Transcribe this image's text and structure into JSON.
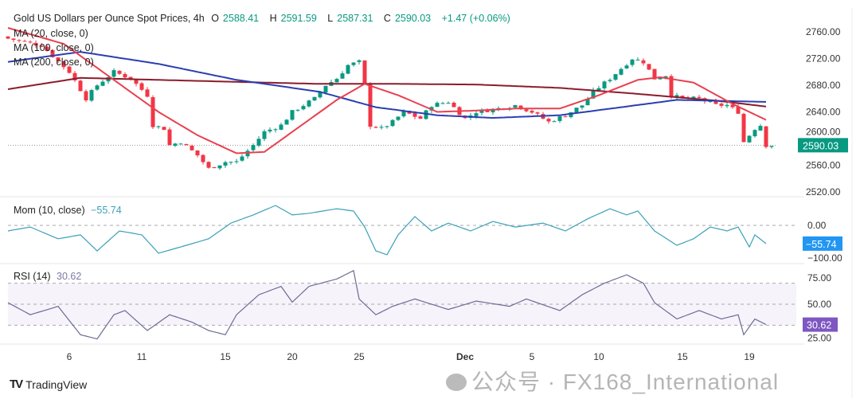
{
  "header": {
    "title": "Gold US Dollars per Ounce Spot Prices, 4h",
    "open_label": "O",
    "open": "2588.41",
    "high_label": "H",
    "high": "2591.59",
    "low_label": "L",
    "low": "2587.31",
    "close_label": "C",
    "close": "2590.03",
    "change": "+1.47 (+0.06%)"
  },
  "legend": {
    "ma20": "MA (20, close, 0)",
    "ma100": "MA (100, close, 0)",
    "ma200": "MA (200, close, 0)"
  },
  "mom_panel": {
    "title": "Mom (10, close)",
    "value": "−55.74"
  },
  "rsi_panel": {
    "title": "RSI (14)",
    "value": "30.62"
  },
  "brand": "TradingView",
  "watermark": "公众号 · FX168_International",
  "colors": {
    "up": "#089981",
    "down": "#f23645",
    "ma20": "#e8404f",
    "ma100": "#2b3fb0",
    "ma200": "#8c1b2b",
    "mom": "#3aa0b8",
    "rsi": "#6f6a96",
    "mom_badge": "#2196f3",
    "rsi_badge": "#7e57c2"
  },
  "chart_data": {
    "type": "candlestick",
    "title": "Gold US Dollars per Ounce Spot Prices, 4h",
    "x_ticks": [
      {
        "bar": 11,
        "label": "6"
      },
      {
        "bar": 24,
        "label": "11"
      },
      {
        "bar": 39,
        "label": "15"
      },
      {
        "bar": 51,
        "label": "20"
      },
      {
        "bar": 63,
        "label": "25"
      },
      {
        "bar": 82,
        "label": "Dec"
      },
      {
        "bar": 94,
        "label": "5"
      },
      {
        "bar": 106,
        "label": "10"
      },
      {
        "bar": 121,
        "label": "15"
      },
      {
        "bar": 133,
        "label": "19"
      }
    ],
    "bars": 138,
    "price": {
      "ylim": [
        2520,
        2760
      ],
      "y_ticks": [
        "2760.00",
        "2720.00",
        "2680.00",
        "2640.00",
        "2600.00",
        "2560.00",
        "2520.00"
      ],
      "last": "2590.03",
      "close_keypoints": [
        [
          0,
          2750
        ],
        [
          6,
          2740
        ],
        [
          11,
          2700
        ],
        [
          14,
          2660
        ],
        [
          16,
          2680
        ],
        [
          19,
          2700
        ],
        [
          22,
          2690
        ],
        [
          25,
          2665
        ],
        [
          26,
          2620
        ],
        [
          28,
          2615
        ],
        [
          29,
          2590
        ],
        [
          31,
          2595
        ],
        [
          34,
          2575
        ],
        [
          36,
          2555
        ],
        [
          39,
          2565
        ],
        [
          41,
          2565
        ],
        [
          44,
          2590
        ],
        [
          46,
          2610
        ],
        [
          49,
          2620
        ],
        [
          51,
          2640
        ],
        [
          55,
          2660
        ],
        [
          57,
          2680
        ],
        [
          59,
          2690
        ],
        [
          61,
          2710
        ],
        [
          63,
          2715
        ],
        [
          64,
          2680
        ],
        [
          65,
          2620
        ],
        [
          67,
          2615
        ],
        [
          69,
          2625
        ],
        [
          71,
          2640
        ],
        [
          74,
          2630
        ],
        [
          76,
          2650
        ],
        [
          79,
          2655
        ],
        [
          82,
          2630
        ],
        [
          84,
          2640
        ],
        [
          88,
          2645
        ],
        [
          91,
          2650
        ],
        [
          94,
          2640
        ],
        [
          97,
          2625
        ],
        [
          100,
          2635
        ],
        [
          103,
          2650
        ],
        [
          105,
          2670
        ],
        [
          108,
          2690
        ],
        [
          110,
          2705
        ],
        [
          112,
          2720
        ],
        [
          114,
          2715
        ],
        [
          116,
          2690
        ],
        [
          118,
          2695
        ],
        [
          119,
          2665
        ],
        [
          121,
          2660
        ],
        [
          124,
          2660
        ],
        [
          127,
          2650
        ],
        [
          129,
          2650
        ],
        [
          131,
          2640
        ],
        [
          132,
          2595
        ],
        [
          134,
          2615
        ],
        [
          135,
          2620
        ],
        [
          136,
          2590
        ],
        [
          137,
          2590
        ]
      ],
      "ma20": [
        [
          0,
          2766
        ],
        [
          10,
          2742
        ],
        [
          20,
          2682
        ],
        [
          27,
          2640
        ],
        [
          34,
          2605
        ],
        [
          41,
          2578
        ],
        [
          46,
          2580
        ],
        [
          51,
          2610
        ],
        [
          59,
          2658
        ],
        [
          64,
          2682
        ],
        [
          70,
          2665
        ],
        [
          77,
          2640
        ],
        [
          84,
          2642
        ],
        [
          91,
          2645
        ],
        [
          99,
          2645
        ],
        [
          106,
          2665
        ],
        [
          113,
          2688
        ],
        [
          117,
          2692
        ],
        [
          123,
          2684
        ],
        [
          130,
          2652
        ],
        [
          136,
          2628
        ]
      ],
      "ma100": [
        [
          0,
          2715
        ],
        [
          13,
          2730
        ],
        [
          27,
          2712
        ],
        [
          41,
          2688
        ],
        [
          56,
          2670
        ],
        [
          66,
          2647
        ],
        [
          77,
          2635
        ],
        [
          87,
          2631
        ],
        [
          99,
          2635
        ],
        [
          110,
          2647
        ],
        [
          120,
          2658
        ],
        [
          136,
          2655
        ]
      ],
      "ma200": [
        [
          0,
          2674
        ],
        [
          13,
          2691
        ],
        [
          27,
          2688
        ],
        [
          41,
          2685
        ],
        [
          56,
          2682
        ],
        [
          70,
          2682
        ],
        [
          84,
          2681
        ],
        [
          99,
          2676
        ],
        [
          113,
          2667
        ],
        [
          127,
          2657
        ],
        [
          136,
          2648
        ]
      ]
    },
    "momentum": {
      "ylim": [
        -120,
        80
      ],
      "y_ticks": [
        "0.00",
        "−100.00"
      ],
      "last": -55.74,
      "keypoints": [
        [
          0,
          -17
        ],
        [
          4,
          -5
        ],
        [
          9,
          -41
        ],
        [
          13,
          -29
        ],
        [
          16,
          -78
        ],
        [
          20,
          -17
        ],
        [
          24,
          -29
        ],
        [
          27,
          -85
        ],
        [
          31,
          -66
        ],
        [
          36,
          -41
        ],
        [
          40,
          7
        ],
        [
          44,
          32
        ],
        [
          48,
          61
        ],
        [
          51,
          32
        ],
        [
          54,
          37
        ],
        [
          59,
          51
        ],
        [
          62,
          44
        ],
        [
          64,
          -5
        ],
        [
          66,
          -78
        ],
        [
          68,
          -90
        ],
        [
          70,
          -29
        ],
        [
          73,
          27
        ],
        [
          76,
          -17
        ],
        [
          79,
          7
        ],
        [
          83,
          -17
        ],
        [
          87,
          12
        ],
        [
          91,
          -5
        ],
        [
          96,
          7
        ],
        [
          100,
          -17
        ],
        [
          104,
          20
        ],
        [
          108,
          51
        ],
        [
          111,
          32
        ],
        [
          113,
          44
        ],
        [
          116,
          -17
        ],
        [
          120,
          -61
        ],
        [
          123,
          -41
        ],
        [
          126,
          -5
        ],
        [
          129,
          -17
        ],
        [
          131,
          -5
        ],
        [
          133,
          -66
        ],
        [
          134,
          -29
        ],
        [
          136,
          -55.74
        ]
      ]
    },
    "rsi": {
      "ylim": [
        10,
        90
      ],
      "y_ticks": [
        "75.00",
        "50.00",
        "25.00"
      ],
      "bands": [
        30,
        50,
        70
      ],
      "last": 30.62,
      "keypoints": [
        [
          0,
          51.5
        ],
        [
          4,
          40
        ],
        [
          9,
          48
        ],
        [
          13,
          21
        ],
        [
          16,
          17
        ],
        [
          19,
          40
        ],
        [
          21,
          44
        ],
        [
          25,
          25
        ],
        [
          29,
          40
        ],
        [
          33,
          33
        ],
        [
          36,
          25
        ],
        [
          39,
          21
        ],
        [
          41,
          40
        ],
        [
          45,
          59
        ],
        [
          49,
          67
        ],
        [
          51,
          52
        ],
        [
          54,
          67
        ],
        [
          59,
          74
        ],
        [
          62,
          82
        ],
        [
          63,
          55
        ],
        [
          66,
          40
        ],
        [
          69,
          48
        ],
        [
          73,
          55
        ],
        [
          79,
          45
        ],
        [
          84,
          53
        ],
        [
          90,
          48
        ],
        [
          93,
          55
        ],
        [
          99,
          44
        ],
        [
          103,
          59
        ],
        [
          107,
          70
        ],
        [
          111,
          78
        ],
        [
          114,
          70
        ],
        [
          116,
          51.5
        ],
        [
          120,
          36
        ],
        [
          124,
          44
        ],
        [
          128,
          36
        ],
        [
          131,
          40
        ],
        [
          132,
          21
        ],
        [
          134,
          36
        ],
        [
          136,
          30.62
        ]
      ]
    }
  }
}
